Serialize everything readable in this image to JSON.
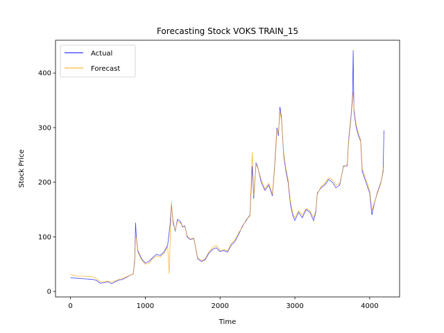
{
  "chart_data": {
    "type": "line",
    "title": "Forecasting Stock VOKS TRAIN_15",
    "xlabel": "Time",
    "ylabel": "Stock Price",
    "xlim": [
      -200,
      4400
    ],
    "ylim": [
      -10,
      460
    ],
    "xticks": [
      0,
      1000,
      2000,
      3000,
      4000
    ],
    "yticks": [
      0,
      100,
      200,
      300,
      400
    ],
    "grid": false,
    "legend_position": "upper-left",
    "series": [
      {
        "name": "Actual",
        "color": "#0000ff",
        "points": [
          [
            0,
            25
          ],
          [
            100,
            24
          ],
          [
            200,
            23
          ],
          [
            300,
            22
          ],
          [
            350,
            20
          ],
          [
            400,
            15
          ],
          [
            450,
            16
          ],
          [
            500,
            18
          ],
          [
            550,
            14
          ],
          [
            600,
            18
          ],
          [
            650,
            21
          ],
          [
            700,
            22
          ],
          [
            750,
            26
          ],
          [
            800,
            30
          ],
          [
            840,
            32
          ],
          [
            860,
            60
          ],
          [
            870,
            126
          ],
          [
            880,
            100
          ],
          [
            900,
            75
          ],
          [
            950,
            60
          ],
          [
            1000,
            52
          ],
          [
            1050,
            55
          ],
          [
            1100,
            62
          ],
          [
            1150,
            68
          ],
          [
            1200,
            66
          ],
          [
            1250,
            72
          ],
          [
            1300,
            85
          ],
          [
            1330,
            120
          ],
          [
            1350,
            160
          ],
          [
            1370,
            130
          ],
          [
            1400,
            110
          ],
          [
            1430,
            132
          ],
          [
            1470,
            128
          ],
          [
            1500,
            118
          ],
          [
            1530,
            120
          ],
          [
            1560,
            100
          ],
          [
            1600,
            95
          ],
          [
            1650,
            97
          ],
          [
            1700,
            60
          ],
          [
            1750,
            55
          ],
          [
            1800,
            58
          ],
          [
            1850,
            70
          ],
          [
            1900,
            77
          ],
          [
            1950,
            80
          ],
          [
            2000,
            73
          ],
          [
            2050,
            75
          ],
          [
            2100,
            72
          ],
          [
            2150,
            85
          ],
          [
            2200,
            92
          ],
          [
            2250,
            105
          ],
          [
            2300,
            120
          ],
          [
            2350,
            130
          ],
          [
            2400,
            140
          ],
          [
            2430,
            230
          ],
          [
            2450,
            170
          ],
          [
            2480,
            235
          ],
          [
            2500,
            230
          ],
          [
            2550,
            200
          ],
          [
            2600,
            185
          ],
          [
            2650,
            195
          ],
          [
            2700,
            175
          ],
          [
            2730,
            230
          ],
          [
            2760,
            300
          ],
          [
            2780,
            285
          ],
          [
            2800,
            338
          ],
          [
            2820,
            320
          ],
          [
            2850,
            250
          ],
          [
            2880,
            220
          ],
          [
            2910,
            200
          ],
          [
            2940,
            160
          ],
          [
            2970,
            140
          ],
          [
            3000,
            130
          ],
          [
            3050,
            145
          ],
          [
            3100,
            135
          ],
          [
            3150,
            150
          ],
          [
            3200,
            145
          ],
          [
            3250,
            130
          ],
          [
            3280,
            145
          ],
          [
            3300,
            180
          ],
          [
            3350,
            190
          ],
          [
            3400,
            195
          ],
          [
            3450,
            205
          ],
          [
            3500,
            200
          ],
          [
            3550,
            190
          ],
          [
            3600,
            195
          ],
          [
            3650,
            230
          ],
          [
            3700,
            230
          ],
          [
            3720,
            280
          ],
          [
            3750,
            320
          ],
          [
            3770,
            355
          ],
          [
            3780,
            442
          ],
          [
            3790,
            330
          ],
          [
            3820,
            300
          ],
          [
            3850,
            285
          ],
          [
            3880,
            275
          ],
          [
            3900,
            220
          ],
          [
            3950,
            200
          ],
          [
            4000,
            180
          ],
          [
            4030,
            140
          ],
          [
            4060,
            160
          ],
          [
            4100,
            180
          ],
          [
            4150,
            200
          ],
          [
            4180,
            220
          ],
          [
            4190,
            295
          ]
        ]
      },
      {
        "name": "Forecast",
        "color": "#ffa500",
        "points": [
          [
            0,
            31
          ],
          [
            100,
            28
          ],
          [
            200,
            28
          ],
          [
            300,
            27
          ],
          [
            350,
            23
          ],
          [
            400,
            18
          ],
          [
            450,
            18
          ],
          [
            500,
            19
          ],
          [
            550,
            17
          ],
          [
            600,
            20
          ],
          [
            650,
            22
          ],
          [
            700,
            24
          ],
          [
            750,
            27
          ],
          [
            800,
            30
          ],
          [
            840,
            32
          ],
          [
            860,
            55
          ],
          [
            870,
            100
          ],
          [
            880,
            98
          ],
          [
            900,
            72
          ],
          [
            950,
            58
          ],
          [
            1000,
            50
          ],
          [
            1050,
            52
          ],
          [
            1100,
            60
          ],
          [
            1150,
            65
          ],
          [
            1200,
            63
          ],
          [
            1250,
            70
          ],
          [
            1300,
            82
          ],
          [
            1320,
            32
          ],
          [
            1350,
            165
          ],
          [
            1370,
            125
          ],
          [
            1400,
            112
          ],
          [
            1430,
            128
          ],
          [
            1470,
            125
          ],
          [
            1500,
            120
          ],
          [
            1530,
            118
          ],
          [
            1560,
            102
          ],
          [
            1600,
            96
          ],
          [
            1650,
            98
          ],
          [
            1700,
            62
          ],
          [
            1750,
            56
          ],
          [
            1800,
            60
          ],
          [
            1850,
            72
          ],
          [
            1900,
            80
          ],
          [
            1950,
            85
          ],
          [
            2000,
            75
          ],
          [
            2050,
            77
          ],
          [
            2100,
            74
          ],
          [
            2150,
            88
          ],
          [
            2200,
            95
          ],
          [
            2250,
            108
          ],
          [
            2300,
            118
          ],
          [
            2350,
            132
          ],
          [
            2400,
            138
          ],
          [
            2430,
            255
          ],
          [
            2450,
            175
          ],
          [
            2480,
            232
          ],
          [
            2500,
            228
          ],
          [
            2550,
            205
          ],
          [
            2600,
            188
          ],
          [
            2650,
            198
          ],
          [
            2700,
            178
          ],
          [
            2730,
            225
          ],
          [
            2760,
            295
          ],
          [
            2780,
            290
          ],
          [
            2800,
            330
          ],
          [
            2820,
            315
          ],
          [
            2850,
            255
          ],
          [
            2880,
            225
          ],
          [
            2910,
            205
          ],
          [
            2940,
            165
          ],
          [
            2970,
            145
          ],
          [
            3000,
            135
          ],
          [
            3050,
            148
          ],
          [
            3100,
            140
          ],
          [
            3150,
            152
          ],
          [
            3200,
            148
          ],
          [
            3250,
            135
          ],
          [
            3280,
            148
          ],
          [
            3300,
            178
          ],
          [
            3350,
            192
          ],
          [
            3400,
            198
          ],
          [
            3450,
            208
          ],
          [
            3500,
            205
          ],
          [
            3550,
            195
          ],
          [
            3600,
            198
          ],
          [
            3650,
            228
          ],
          [
            3700,
            232
          ],
          [
            3720,
            275
          ],
          [
            3750,
            315
          ],
          [
            3770,
            348
          ],
          [
            3780,
            365
          ],
          [
            3790,
            335
          ],
          [
            3820,
            305
          ],
          [
            3850,
            290
          ],
          [
            3880,
            278
          ],
          [
            3900,
            225
          ],
          [
            3950,
            205
          ],
          [
            4000,
            185
          ],
          [
            4030,
            148
          ],
          [
            4060,
            162
          ],
          [
            4100,
            178
          ],
          [
            4150,
            198
          ],
          [
            4180,
            225
          ],
          [
            4190,
            230
          ]
        ]
      }
    ]
  }
}
